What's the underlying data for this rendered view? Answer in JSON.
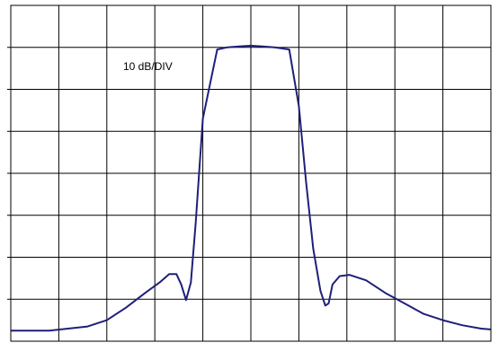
{
  "chart_data": {
    "type": "line",
    "annotation": "10 dB/DIV",
    "grid": true,
    "x_divisions": 10,
    "y_divisions": 8,
    "xlim": [
      0,
      10
    ],
    "ylim": [
      0,
      8
    ],
    "x_tick_labels": [],
    "y_tick_labels": [],
    "colors": {
      "trace": "#1f1f7a",
      "grid": "#000000",
      "background": "#ffffff"
    },
    "series": [
      {
        "x": [
          0.0,
          0.8,
          1.6,
          2.0,
          2.4,
          2.8,
          3.1,
          3.3,
          3.45,
          3.55,
          3.65,
          3.75,
          3.85,
          4.0,
          4.3,
          4.5,
          4.75,
          5.0,
          5.25,
          5.5,
          5.8,
          6.0,
          6.15,
          6.3,
          6.45,
          6.55,
          6.62,
          6.7,
          6.85,
          7.05,
          7.4,
          7.8,
          8.2,
          8.6,
          9.0,
          9.4,
          9.8,
          10.0
        ],
        "y": [
          0.25,
          0.25,
          0.35,
          0.5,
          0.8,
          1.15,
          1.4,
          1.6,
          1.6,
          1.35,
          0.98,
          1.4,
          2.8,
          5.3,
          6.95,
          7.0,
          7.02,
          7.04,
          7.02,
          7.0,
          6.95,
          5.6,
          3.8,
          2.2,
          1.2,
          0.85,
          0.9,
          1.35,
          1.55,
          1.58,
          1.45,
          1.15,
          0.9,
          0.65,
          0.5,
          0.38,
          0.3,
          0.28
        ]
      }
    ]
  }
}
